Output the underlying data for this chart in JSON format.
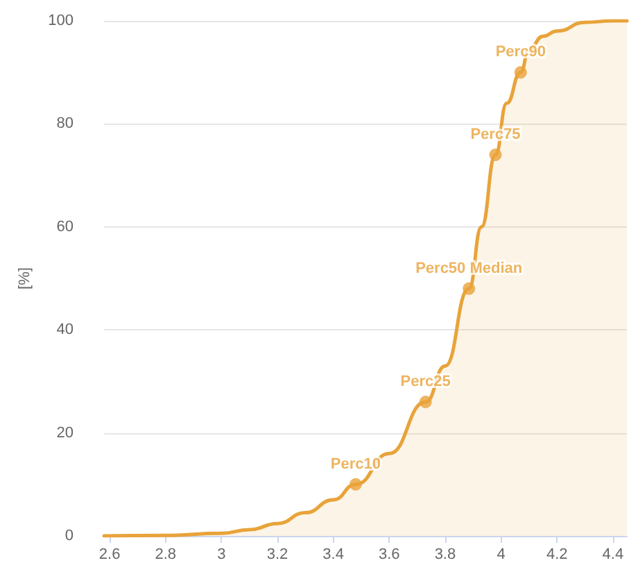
{
  "chart_data": {
    "type": "area",
    "ylabel": "[%]",
    "x": [
      2.58,
      2.8,
      3.0,
      3.1,
      3.2,
      3.3,
      3.4,
      3.48,
      3.6,
      3.73,
      3.8,
      3.885,
      3.93,
      3.98,
      4.02,
      4.07,
      4.1,
      4.15,
      4.2,
      4.3,
      4.4,
      4.45
    ],
    "series": [
      {
        "color": "#e8a33a",
        "values": [
          0,
          0.1,
          0.5,
          1.2,
          2.4,
          4.5,
          7,
          10,
          16,
          26,
          33,
          48,
          60,
          74,
          84,
          90,
          94.5,
          97,
          98,
          99.7,
          100,
          100
        ]
      },
      {
        "type": "scatter",
        "color": "#e8a33a",
        "marker": "circle",
        "x": [
          3.48,
          3.73,
          3.885,
          3.98,
          4.07
        ],
        "values": [
          10,
          26,
          48,
          74,
          90
        ]
      }
    ],
    "xlim": [
      2.58,
      4.45
    ],
    "xticks": [
      2.6,
      2.8,
      3,
      3.2,
      3.4,
      3.6,
      3.8,
      4,
      4.2,
      4.4
    ],
    "ylim": [
      0,
      100
    ],
    "yticks": [
      0,
      20,
      40,
      60,
      80,
      100
    ],
    "grid": "y",
    "marker": "none",
    "annotations": [
      {
        "text": "Perc10",
        "x": 3.48,
        "y": 10
      },
      {
        "text": "Perc25",
        "x": 3.73,
        "y": 26
      },
      {
        "text": "Perc50 Median",
        "x": 3.885,
        "y": 48
      },
      {
        "text": "Perc75",
        "x": 3.98,
        "y": 74
      },
      {
        "text": "Perc90",
        "x": 4.07,
        "y": 90
      }
    ]
  }
}
